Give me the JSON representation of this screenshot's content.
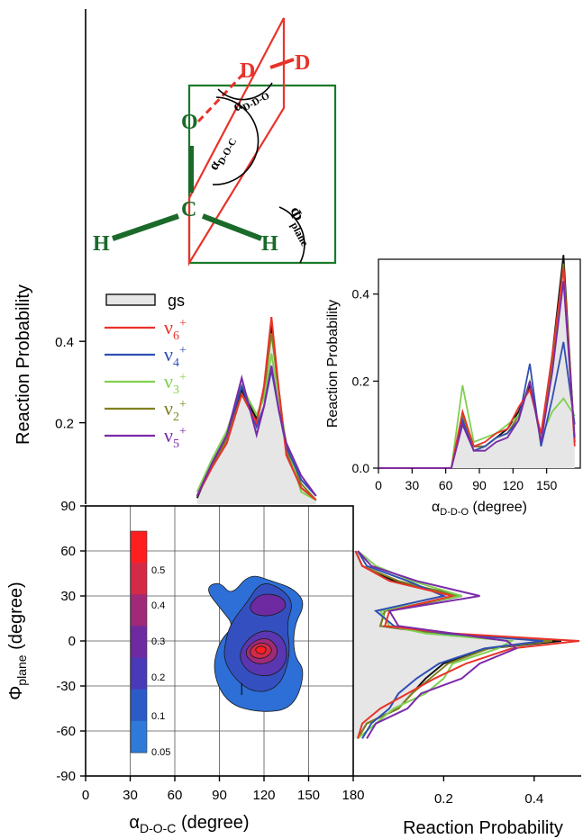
{
  "molecule": {
    "atoms": {
      "d1": "D",
      "d2": "D",
      "o": "O",
      "c": "C",
      "h1": "H",
      "h2": "H"
    },
    "angle_ddo": {
      "sym": "α",
      "sub": "D-D-O"
    },
    "angle_doc": {
      "sym": "α",
      "sub": "D-O-C"
    },
    "angle_phi": {
      "sym": "Φ",
      "sub": "plane"
    }
  },
  "legend": [
    {
      "key": "gs",
      "base": "gs",
      "sub": "",
      "sup": "",
      "color": "#111111"
    },
    {
      "key": "v6",
      "base": "ν",
      "sub": "6",
      "sup": "+",
      "color": "#e8332a"
    },
    {
      "key": "v4",
      "base": "ν",
      "sub": "4",
      "sup": "+",
      "color": "#2f4fb3"
    },
    {
      "key": "v3",
      "base": "ν",
      "sub": "3",
      "sup": "+",
      "color": "#80d050"
    },
    {
      "key": "v2",
      "base": "ν",
      "sub": "2",
      "sup": "+",
      "color": "#808020"
    },
    {
      "key": "v5",
      "base": "ν",
      "sub": "5",
      "sup": "+",
      "color": "#7a2aa8"
    }
  ],
  "chart_data": [
    {
      "id": "top-alpha-doc",
      "type": "line",
      "ylabel": "Reaction Probability",
      "yticks": [
        "0.2",
        "0.4"
      ],
      "xlim": [
        0,
        180
      ],
      "ylim": [
        0,
        0.5
      ],
      "x": [
        75,
        85,
        95,
        105,
        115,
        120,
        125,
        130,
        135,
        145,
        155
      ],
      "series": [
        {
          "name": "gs",
          "fill": true,
          "values": [
            0.015,
            0.1,
            0.16,
            0.28,
            0.21,
            0.27,
            0.44,
            0.27,
            0.13,
            0.04,
            0.01
          ]
        },
        {
          "name": "v6",
          "values": [
            0.02,
            0.09,
            0.15,
            0.27,
            0.2,
            0.29,
            0.46,
            0.28,
            0.12,
            0.04,
            0.01
          ]
        },
        {
          "name": "v4",
          "values": [
            0.02,
            0.1,
            0.17,
            0.29,
            0.19,
            0.24,
            0.33,
            0.23,
            0.14,
            0.06,
            0.02
          ]
        },
        {
          "name": "v3",
          "values": [
            0.03,
            0.11,
            0.18,
            0.29,
            0.22,
            0.26,
            0.37,
            0.26,
            0.15,
            0.03,
            0.01
          ]
        },
        {
          "name": "v2",
          "values": [
            0.02,
            0.09,
            0.16,
            0.27,
            0.2,
            0.28,
            0.42,
            0.28,
            0.13,
            0.05,
            0.01
          ]
        },
        {
          "name": "v5",
          "values": [
            0.02,
            0.1,
            0.17,
            0.31,
            0.17,
            0.24,
            0.34,
            0.23,
            0.15,
            0.07,
            0.02
          ]
        }
      ]
    },
    {
      "id": "inset-alpha-ddo",
      "type": "line",
      "xlabel": {
        "sym": "α",
        "sub": "D-D-O",
        "unit": " (degree)"
      },
      "ylabel": "Reaction Probability",
      "xticks": [
        "0",
        "30",
        "60",
        "90",
        "120",
        "150"
      ],
      "yticks": [
        "0.0",
        "0.2",
        "0.4"
      ],
      "xlim": [
        0,
        180
      ],
      "ylim": [
        0,
        0.48
      ],
      "x": [
        0,
        65,
        75,
        85,
        95,
        105,
        115,
        125,
        135,
        145,
        155,
        165,
        175
      ],
      "series": [
        {
          "name": "gs",
          "fill": true,
          "values": [
            0,
            0,
            0.12,
            0.05,
            0.05,
            0.07,
            0.09,
            0.13,
            0.19,
            0.07,
            0.26,
            0.49,
            0.06
          ]
        },
        {
          "name": "v6",
          "values": [
            0,
            0,
            0.13,
            0.05,
            0.06,
            0.08,
            0.09,
            0.14,
            0.18,
            0.08,
            0.26,
            0.46,
            0.05
          ]
        },
        {
          "name": "v4",
          "values": [
            0,
            0,
            0.11,
            0.04,
            0.05,
            0.07,
            0.08,
            0.11,
            0.24,
            0.05,
            0.16,
            0.29,
            0.1
          ]
        },
        {
          "name": "v3",
          "values": [
            0,
            0,
            0.19,
            0.06,
            0.07,
            0.08,
            0.1,
            0.12,
            0.2,
            0.07,
            0.13,
            0.16,
            0.12
          ]
        },
        {
          "name": "v2",
          "values": [
            0,
            0,
            0.12,
            0.05,
            0.05,
            0.07,
            0.08,
            0.12,
            0.2,
            0.06,
            0.24,
            0.47,
            0.06
          ]
        },
        {
          "name": "v5",
          "values": [
            0,
            0,
            0.1,
            0.04,
            0.04,
            0.06,
            0.07,
            0.11,
            0.2,
            0.06,
            0.22,
            0.43,
            0.07
          ]
        }
      ]
    },
    {
      "id": "contour-2d",
      "type": "heatmap",
      "xlabel": {
        "sym": "α",
        "sub": "D-O-C",
        "unit": " (degree)"
      },
      "ylabel": {
        "sym": "Φ",
        "sub": "plane",
        "unit": " (degree)"
      },
      "xticks": [
        "0",
        "30",
        "60",
        "90",
        "120",
        "150",
        "180"
      ],
      "yticks": [
        "90",
        "60",
        "30",
        "0",
        "-30",
        "-60",
        "-90"
      ],
      "xlim": [
        0,
        180
      ],
      "ylim": [
        -90,
        90
      ],
      "colorbar": {
        "labels": [
          "0.5",
          "0.4",
          "0.3",
          "0.2",
          "0.1",
          "0.05"
        ],
        "colors": [
          "#ff1f1f",
          "#d42a48",
          "#a02a78",
          "#6e2aa0",
          "#4a3ab8",
          "#2c5bc8",
          "#2f7ad8"
        ]
      },
      "contours": [
        {
          "level": 0.05,
          "color": "#2d6fd6",
          "points": [
            [
              80,
              35
            ],
            [
              90,
              40
            ],
            [
              98,
              30
            ],
            [
              110,
              45
            ],
            [
              125,
              40
            ],
            [
              140,
              35
            ],
            [
              148,
              25
            ],
            [
              140,
              10
            ],
            [
              140,
              -10
            ],
            [
              148,
              -20
            ],
            [
              140,
              -45
            ],
            [
              118,
              -48
            ],
            [
              95,
              -42
            ],
            [
              85,
              -20
            ],
            [
              90,
              0
            ],
            [
              100,
              10
            ],
            [
              92,
              20
            ]
          ]
        },
        {
          "level": 0.1,
          "color": "#3450c0",
          "points": [
            [
              100,
              15
            ],
            [
              108,
              25
            ],
            [
              118,
              40
            ],
            [
              132,
              35
            ],
            [
              140,
              25
            ],
            [
              135,
              12
            ],
            [
              138,
              -10
            ],
            [
              130,
              -32
            ],
            [
              110,
              -35
            ],
            [
              92,
              -15
            ],
            [
              95,
              5
            ]
          ]
        },
        {
          "level": 0.2,
          "color": "#5a36b0",
          "points": [
            [
              102,
              -10
            ],
            [
              110,
              3
            ],
            [
              122,
              8
            ],
            [
              134,
              2
            ],
            [
              136,
              -14
            ],
            [
              126,
              -24
            ],
            [
              110,
              -22
            ]
          ]
        },
        {
          "level": 0.3,
          "color": "#a02a78",
          "points": [
            [
              106,
              -8
            ],
            [
              114,
              1
            ],
            [
              124,
              2
            ],
            [
              130,
              -6
            ],
            [
              126,
              -14
            ],
            [
              114,
              -16
            ]
          ]
        },
        {
          "level": 0.4,
          "color": "#d42a48",
          "points": [
            [
              110,
              -6
            ],
            [
              116,
              -1
            ],
            [
              123,
              -2
            ],
            [
              126,
              -7
            ],
            [
              120,
              -12
            ],
            [
              112,
              -11
            ]
          ]
        },
        {
          "level": 0.5,
          "color": "#ff1f1f",
          "points": [
            [
              114,
              -5
            ],
            [
              118,
              -3
            ],
            [
              122,
              -5
            ],
            [
              120,
              -9
            ],
            [
              115,
              -8
            ]
          ]
        },
        {
          "level": 0.2,
          "color": "#6e2aa0",
          "points": [
            [
              110,
              24
            ],
            [
              118,
              32
            ],
            [
              132,
              30
            ],
            [
              136,
              22
            ],
            [
              124,
              16
            ],
            [
              112,
              18
            ]
          ]
        }
      ]
    },
    {
      "id": "right-phi-plane",
      "type": "line",
      "xlabel": "Reaction Probability",
      "xticks": [
        "0.2",
        "0.4"
      ],
      "xlim": [
        0,
        0.5
      ],
      "ylim": [
        -90,
        90
      ],
      "y": [
        -65,
        -55,
        -45,
        -35,
        -25,
        -15,
        -5,
        0,
        5,
        10,
        20,
        30,
        40,
        50,
        60
      ],
      "series": [
        {
          "name": "gs",
          "fill": true,
          "values": [
            0.01,
            0.03,
            0.1,
            0.13,
            0.16,
            0.2,
            0.3,
            0.46,
            0.18,
            0.06,
            0.07,
            0.24,
            0.09,
            0.02,
            0.005
          ]
        },
        {
          "name": "v6",
          "values": [
            0.01,
            0.02,
            0.06,
            0.12,
            0.18,
            0.25,
            0.35,
            0.5,
            0.22,
            0.07,
            0.08,
            0.22,
            0.08,
            0.02,
            0.005
          ]
        },
        {
          "name": "v4",
          "values": [
            0.02,
            0.04,
            0.08,
            0.1,
            0.14,
            0.19,
            0.29,
            0.42,
            0.2,
            0.09,
            0.05,
            0.2,
            0.12,
            0.03,
            0.01
          ]
        },
        {
          "name": "v3",
          "values": [
            0.01,
            0.05,
            0.09,
            0.16,
            0.2,
            0.22,
            0.32,
            0.35,
            0.16,
            0.08,
            0.06,
            0.24,
            0.13,
            0.05,
            0.01
          ]
        },
        {
          "name": "v2",
          "values": [
            0.01,
            0.03,
            0.1,
            0.13,
            0.17,
            0.21,
            0.3,
            0.44,
            0.19,
            0.06,
            0.07,
            0.23,
            0.1,
            0.02,
            0.005
          ]
        },
        {
          "name": "v5",
          "values": [
            0.03,
            0.05,
            0.12,
            0.15,
            0.24,
            0.28,
            0.36,
            0.34,
            0.22,
            0.1,
            0.08,
            0.28,
            0.14,
            0.04,
            0.01
          ]
        }
      ]
    }
  ]
}
